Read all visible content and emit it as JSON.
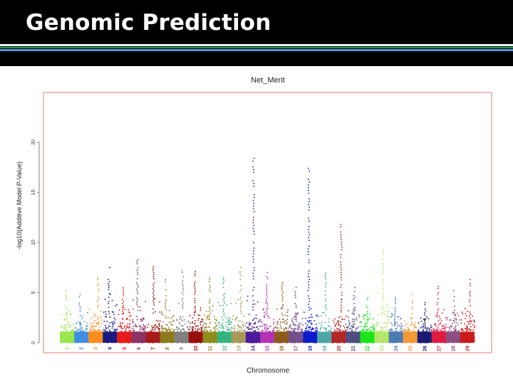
{
  "slide": {
    "title": "Genomic Prediction"
  },
  "colors": {
    "header_bg": "#000000",
    "header_rule_green": "#1fa64a",
    "header_rule_blue": "#5a8fd6",
    "plot_border": "#e07a7a"
  },
  "chart_data": {
    "type": "scatter",
    "subtype": "manhattan",
    "title": "Net_Merit",
    "xlabel": "Chromosome",
    "ylabel": "-log10(Additive Model P-Value)",
    "ylim": [
      0,
      25
    ],
    "yticks": [
      "0",
      "5",
      "10",
      "15",
      "20"
    ],
    "grid": false,
    "legend": "none",
    "chromosomes": [
      {
        "label": "1",
        "color": "#99e64d",
        "top": 5.2
      },
      {
        "label": "2",
        "color": "#3f8fe0",
        "top": 4.8
      },
      {
        "label": "3",
        "color": "#ff8c1a",
        "top": 6.5
      },
      {
        "label": "4",
        "color": "#1a1a80",
        "top": 7.5
      },
      {
        "label": "5",
        "color": "#e61a1a",
        "top": 5.5
      },
      {
        "label": "6",
        "color": "#8c3366",
        "top": 8.3
      },
      {
        "label": "7",
        "color": "#a61a1a",
        "top": 7.6
      },
      {
        "label": "8",
        "color": "#8c7a1a",
        "top": 6.3
      },
      {
        "label": "9",
        "color": "#808080",
        "top": 7.2
      },
      {
        "label": "10",
        "color": "#990f0f",
        "top": 7.1
      },
      {
        "label": "11",
        "color": "#8c8c1a",
        "top": 6.5
      },
      {
        "label": "12",
        "color": "#33b380",
        "top": 6.5
      },
      {
        "label": "13",
        "color": "#a6995a",
        "top": 7.5
      },
      {
        "label": "14",
        "color": "#4d1a99",
        "top": 18.4
      },
      {
        "label": "15",
        "color": "#b333b3",
        "top": 7.0
      },
      {
        "label": "16",
        "color": "#8c5a1a",
        "top": 6.0
      },
      {
        "label": "17",
        "color": "#734d8c",
        "top": 5.5
      },
      {
        "label": "18",
        "color": "#0d1acc",
        "top": 17.4
      },
      {
        "label": "19",
        "color": "#4da6a6",
        "top": 7.0
      },
      {
        "label": "20",
        "color": "#b32626",
        "top": 11.8
      },
      {
        "label": "21",
        "color": "#4d4d80",
        "top": 5.5
      },
      {
        "label": "22",
        "color": "#1ae61a",
        "top": 4.5
      },
      {
        "label": "23",
        "color": "#b3e666",
        "top": 9.2
      },
      {
        "label": "24",
        "color": "#4d7ab3",
        "top": 4.5
      },
      {
        "label": "25",
        "color": "#f29933",
        "top": 4.8
      },
      {
        "label": "26",
        "color": "#1a1a73",
        "top": 4.0
      },
      {
        "label": "27",
        "color": "#e01a40",
        "top": 5.6
      },
      {
        "label": "28",
        "color": "#8c4d80",
        "top": 5.2
      },
      {
        "label": "29",
        "color": "#cc1a1a",
        "top": 6.3
      }
    ]
  }
}
